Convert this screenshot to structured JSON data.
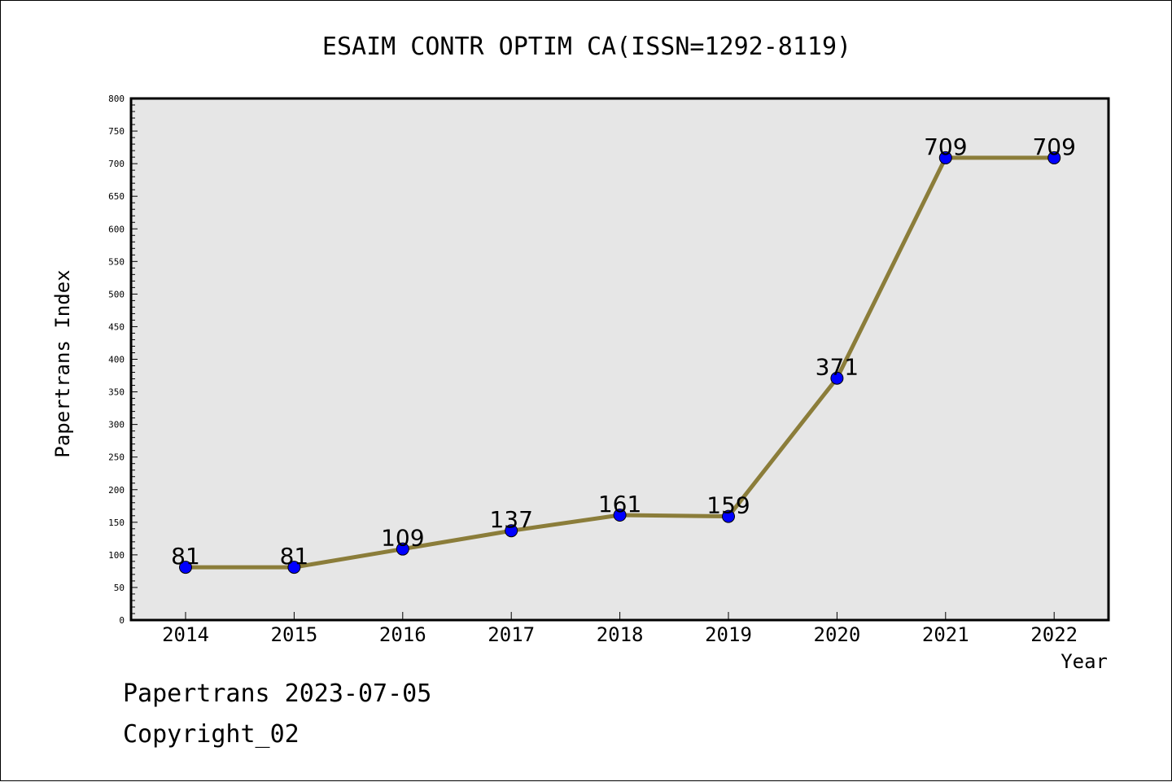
{
  "chart_data": {
    "type": "line",
    "title": "ESAIM CONTR OPTIM CA(ISSN=1292-8119)",
    "xlabel": "Year",
    "ylabel": "Papertrans Index",
    "categories": [
      "2014",
      "2015",
      "2016",
      "2017",
      "2018",
      "2019",
      "2020",
      "2021",
      "2022"
    ],
    "series": [
      {
        "values": [
          81,
          81,
          109,
          137,
          161,
          159,
          371,
          709,
          709
        ]
      }
    ],
    "ylim": [
      0,
      800
    ],
    "yticks": [
      0,
      50,
      100,
      150,
      200,
      250,
      300,
      350,
      400,
      450,
      500,
      550,
      600,
      650,
      700,
      750,
      800
    ],
    "data_labels": [
      "81",
      "81",
      "109",
      "137",
      "161",
      "159",
      "371",
      "709",
      "709"
    ],
    "grid": false,
    "legend": "none",
    "colors": {
      "line": "#8b7d3a",
      "marker": "#0000ff",
      "plot_background": "#e6e6e6",
      "axis": "#000000"
    }
  },
  "footer": {
    "line1": "Papertrans 2023-07-05",
    "line2": "Copyright_02"
  }
}
